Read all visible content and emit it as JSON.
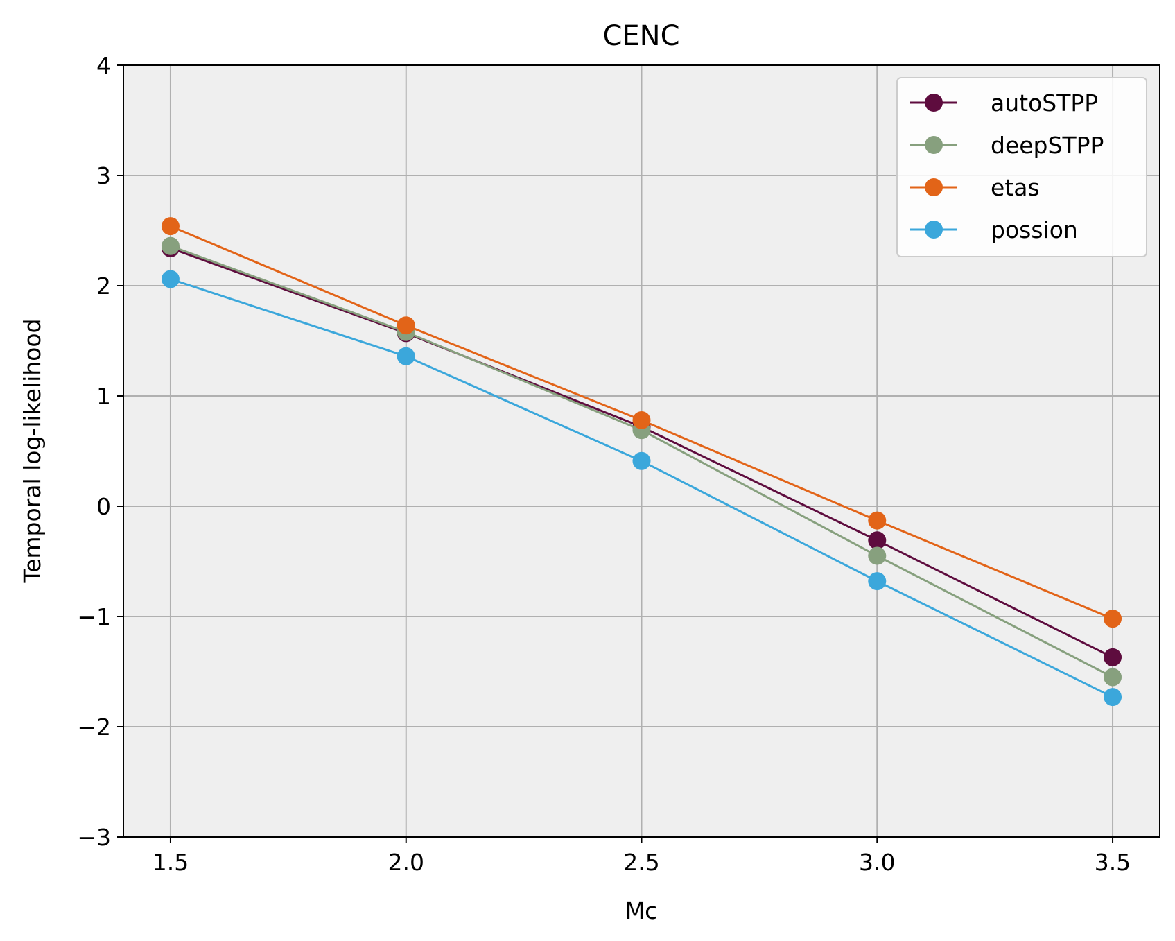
{
  "chart_data": {
    "type": "line",
    "title": "CENC",
    "xlabel": "Mc",
    "ylabel": "Temporal log-likelihood",
    "x": [
      1.5,
      2.0,
      2.5,
      3.0,
      3.5
    ],
    "x_tick_labels": [
      "1.5",
      "2.0",
      "2.5",
      "3.0",
      "3.5"
    ],
    "y_tick_labels": [
      "−3",
      "−2",
      "−1",
      "0",
      "1",
      "2",
      "3",
      "4"
    ],
    "xlim": [
      1.4,
      3.6
    ],
    "ylim": [
      -3,
      4
    ],
    "grid": true,
    "legend_position": "top-right",
    "background_color": "#efefef",
    "series": [
      {
        "name": "autoSTPP",
        "color": "#5e0c3e",
        "values": [
          2.34,
          1.57,
          0.72,
          -0.31,
          -1.37
        ]
      },
      {
        "name": "deepSTPP",
        "color": "#87a07e",
        "values": [
          2.36,
          1.58,
          0.69,
          -0.45,
          -1.55
        ]
      },
      {
        "name": "etas",
        "color": "#e26418",
        "values": [
          2.54,
          1.64,
          0.78,
          -0.13,
          -1.02
        ]
      },
      {
        "name": "possion",
        "color": "#3ba7db",
        "values": [
          2.06,
          1.36,
          0.41,
          -0.68,
          -1.73
        ]
      }
    ]
  }
}
